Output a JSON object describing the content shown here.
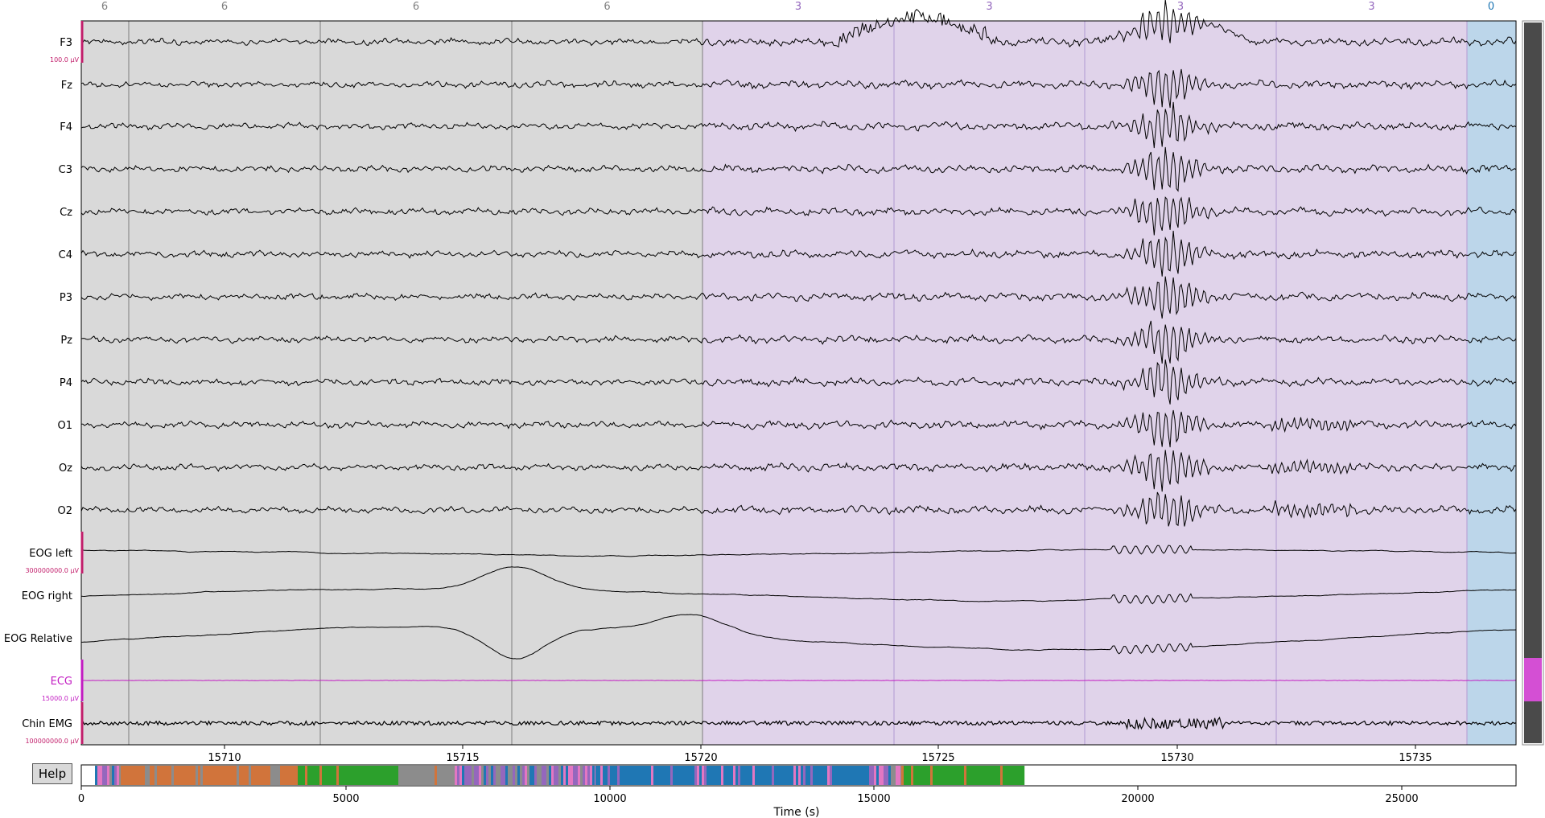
{
  "viewer": {
    "help_label": "Help",
    "xlabel": "Time (s)",
    "time_ticks": [
      "15710",
      "15715",
      "15720",
      "15725",
      "15730",
      "15735"
    ],
    "overview_ticks": [
      "0",
      "5000",
      "10000",
      "15000",
      "20000",
      "25000"
    ]
  },
  "channels": [
    {
      "name": "F3",
      "scale": "100.0 µV",
      "color": "#000000",
      "kind": "eeg",
      "seed": 3
    },
    {
      "name": "Fz",
      "scale": "",
      "color": "#000000",
      "kind": "eeg",
      "seed": 5
    },
    {
      "name": "F4",
      "scale": "",
      "color": "#000000",
      "kind": "eeg",
      "seed": 7
    },
    {
      "name": "C3",
      "scale": "",
      "color": "#000000",
      "kind": "eeg",
      "seed": 11
    },
    {
      "name": "Cz",
      "scale": "",
      "color": "#000000",
      "kind": "eeg",
      "seed": 13
    },
    {
      "name": "C4",
      "scale": "",
      "color": "#000000",
      "kind": "eeg",
      "seed": 17
    },
    {
      "name": "P3",
      "scale": "",
      "color": "#000000",
      "kind": "eeg",
      "seed": 19
    },
    {
      "name": "Pz",
      "scale": "",
      "color": "#000000",
      "kind": "eeg",
      "seed": 23
    },
    {
      "name": "P4",
      "scale": "",
      "color": "#000000",
      "kind": "eeg",
      "seed": 29
    },
    {
      "name": "O1",
      "scale": "",
      "color": "#000000",
      "kind": "eeg",
      "seed": 31
    },
    {
      "name": "Oz",
      "scale": "",
      "color": "#000000",
      "kind": "eeg",
      "seed": 37
    },
    {
      "name": "O2",
      "scale": "",
      "color": "#000000",
      "kind": "eeg",
      "seed": 41
    },
    {
      "name": "EOG left",
      "scale": "300000000.0 µV",
      "color": "#000000",
      "kind": "eog",
      "seed": 43
    },
    {
      "name": "EOG right",
      "scale": "",
      "color": "#000000",
      "kind": "eog",
      "seed": 47
    },
    {
      "name": "EOG Relative",
      "scale": "",
      "color": "#000000",
      "kind": "eog",
      "seed": 53
    },
    {
      "name": "ECG",
      "scale": "15000.0 µV",
      "color": "#c21cc2",
      "kind": "ecg",
      "seed": 59
    },
    {
      "name": "Chin EMG",
      "scale": "100000000.0 µV",
      "color": "#000000",
      "kind": "emg",
      "seed": 61
    }
  ],
  "epochs": [
    {
      "label": "6",
      "stage_color": "#d9d9d9",
      "label_color": "#808080"
    },
    {
      "label": "6",
      "stage_color": "#d9d9d9",
      "label_color": "#808080"
    },
    {
      "label": "6",
      "stage_color": "#d9d9d9",
      "label_color": "#808080"
    },
    {
      "label": "6",
      "stage_color": "#d9d9d9",
      "label_color": "#808080"
    },
    {
      "label": "3",
      "stage_color": "#e0d3ea",
      "label_color": "#9467bd"
    },
    {
      "label": "3",
      "stage_color": "#e0d3ea",
      "label_color": "#9467bd"
    },
    {
      "label": "3",
      "stage_color": "#e0d3ea",
      "label_color": "#9467bd"
    },
    {
      "label": "3",
      "stage_color": "#e0d3ea",
      "label_color": "#9467bd"
    },
    {
      "label": "0",
      "stage_color": "#bcd6ea",
      "label_color": "#1f77b4"
    }
  ],
  "colors": {
    "scalebar": "#c21e6b",
    "ecg_scalebar": "#c21cc2",
    "scrollbar_bg": "#4a4a4a",
    "scrollbar_thumb": "#d44fd4",
    "hypno_green": "#2ca02c",
    "hypno_orange": "#d1743b",
    "hypno_gray": "#8c8c8c",
    "hypno_blue": "#1f77b4",
    "hypno_purple": "#9467bd",
    "hypno_pink": "#e377c2"
  }
}
